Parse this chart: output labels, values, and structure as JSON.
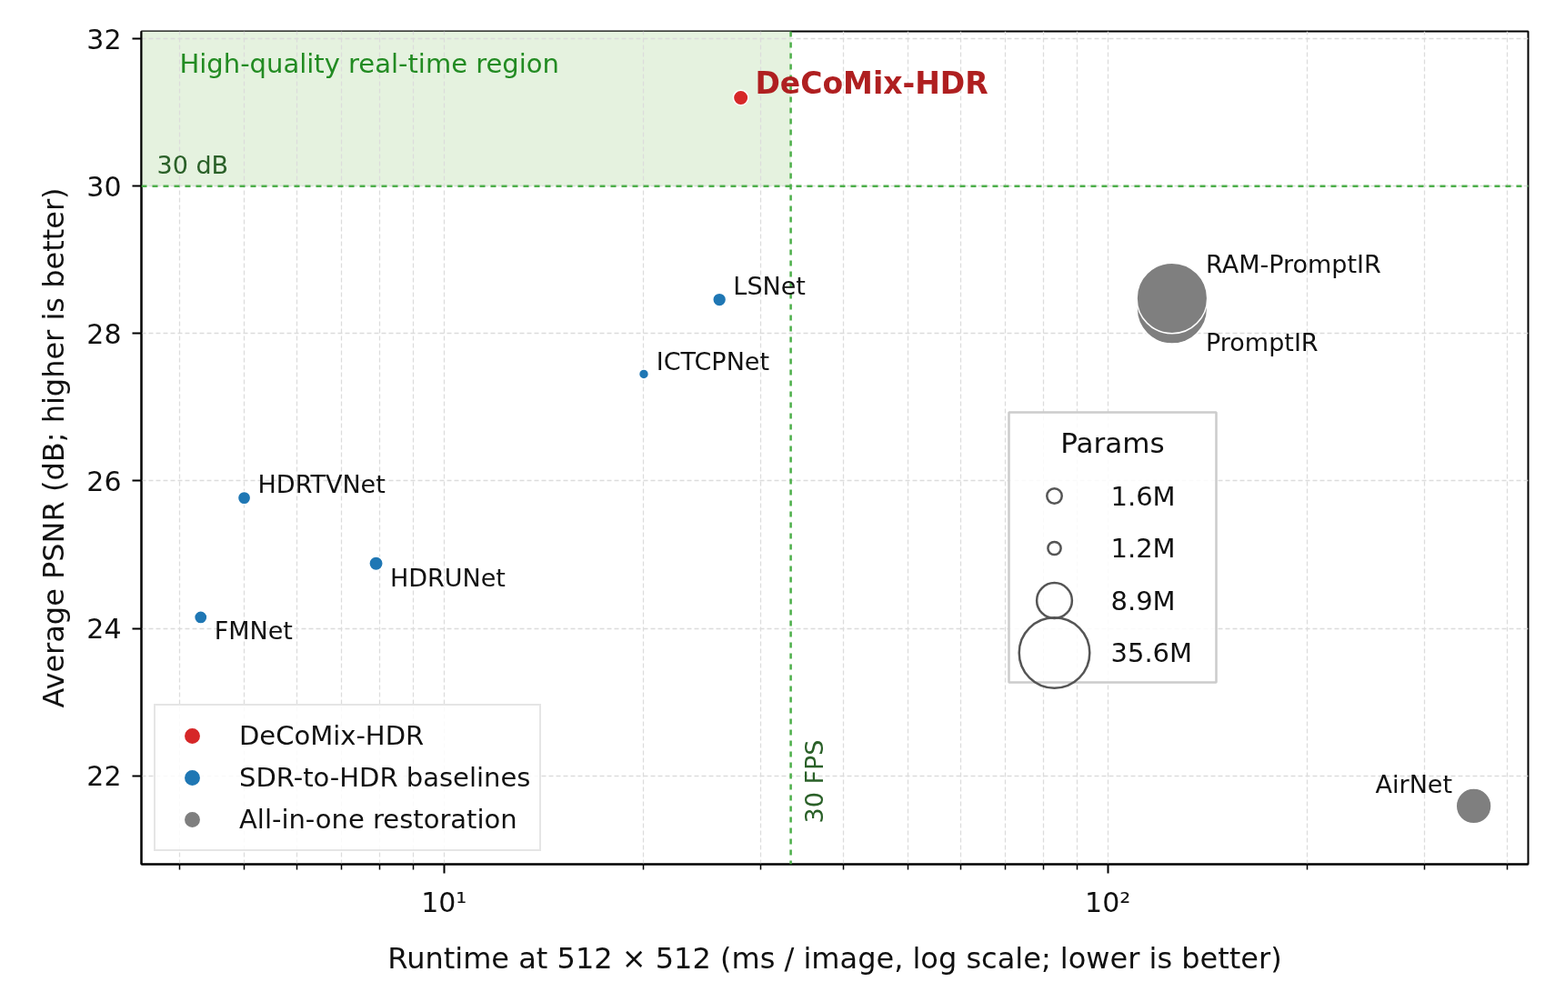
{
  "chart_data": {
    "type": "bubble",
    "xlabel": "Runtime at 512 × 512 (ms / image, log scale; lower is better)",
    "ylabel": "Average PSNR (dB; higher is better)",
    "legend_title": "Params",
    "log": "x",
    "xlim": [
      3.5,
      430
    ],
    "ylim": [
      20.8,
      32.1
    ],
    "xticks": [
      {
        "value": 4,
        "label": null
      },
      {
        "value": 5,
        "label": null
      },
      {
        "value": 6,
        "label": null
      },
      {
        "value": 7,
        "label": null
      },
      {
        "value": 8,
        "label": null
      },
      {
        "value": 9,
        "label": null
      },
      {
        "value": 10,
        "label": "10¹"
      },
      {
        "value": 20,
        "label": null
      },
      {
        "value": 30,
        "label": null
      },
      {
        "value": 40,
        "label": null
      },
      {
        "value": 50,
        "label": null
      },
      {
        "value": 60,
        "label": null
      },
      {
        "value": 70,
        "label": null
      },
      {
        "value": 80,
        "label": null
      },
      {
        "value": 90,
        "label": null
      },
      {
        "value": 100,
        "label": "10²"
      },
      {
        "value": 200,
        "label": null
      },
      {
        "value": 300,
        "label": null
      },
      {
        "value": 400,
        "label": null
      }
    ],
    "yticks": [
      22,
      24,
      26,
      28,
      30,
      32
    ],
    "grid": true,
    "legend": "bottom left",
    "marker": "circle",
    "size_legend": [
      {
        "value": 1.6,
        "label": "1.6M"
      },
      {
        "value": 1.2,
        "label": "1.2M"
      },
      {
        "value": 8.9,
        "label": "8.9M"
      },
      {
        "value": 35.6,
        "label": "35.6M"
      }
    ],
    "series": [
      {
        "name": "DeCoMix-HDR",
        "color": "#d62728",
        "x": [
          28
        ],
        "values": [
          31.2
        ],
        "sizes": [
          1.6
        ]
      },
      {
        "name": "SDR-to-HDR baselines",
        "color": "#1f77b4",
        "x": [
          26,
          20,
          5.0,
          7.9,
          4.3
        ],
        "values": [
          28.46,
          27.45,
          25.77,
          24.88,
          24.15
        ],
        "sizes": [
          1.3,
          0.7,
          1.2,
          1.4,
          1.2
        ]
      },
      {
        "name": "All-in-one restoration",
        "color": "#7f7f7f",
        "x": [
          125,
          125,
          356
        ],
        "values": [
          28.34,
          28.48,
          21.59
        ],
        "sizes": [
          35.6,
          35.6,
          8.9
        ]
      }
    ],
    "ref_lines": [
      {
        "axis": "y",
        "value": 30,
        "label": "30 dB",
        "color": "#4daf4a",
        "line_style": "dashed"
      },
      {
        "axis": "x",
        "value": 33.3,
        "label": "30 FPS",
        "color": "#4daf4a",
        "line_style": "dashed"
      }
    ],
    "bands": [
      {
        "axis": "y",
        "from": 30,
        "to": 32.1,
        "label": "High-quality real-time region",
        "color": "#e5f2df"
      }
    ],
    "annotations": [
      {
        "text": "DeCoMix-HDR",
        "x": 28,
        "y": 31.2
      },
      {
        "text": "LSNet",
        "x": 26,
        "y": 28.46
      },
      {
        "text": "ICTCPNet",
        "x": 20,
        "y": 27.45
      },
      {
        "text": "HDRTVNet",
        "x": 5.0,
        "y": 25.77
      },
      {
        "text": "HDRUNet",
        "x": 7.9,
        "y": 24.88
      },
      {
        "text": "FMNet",
        "x": 4.3,
        "y": 24.15
      },
      {
        "text": "RAM-PromptIR",
        "x": 125,
        "y": 28.48
      },
      {
        "text": "PromptIR",
        "x": 125,
        "y": 28.34
      },
      {
        "text": "AirNet",
        "x": 356,
        "y": 21.59
      }
    ]
  }
}
